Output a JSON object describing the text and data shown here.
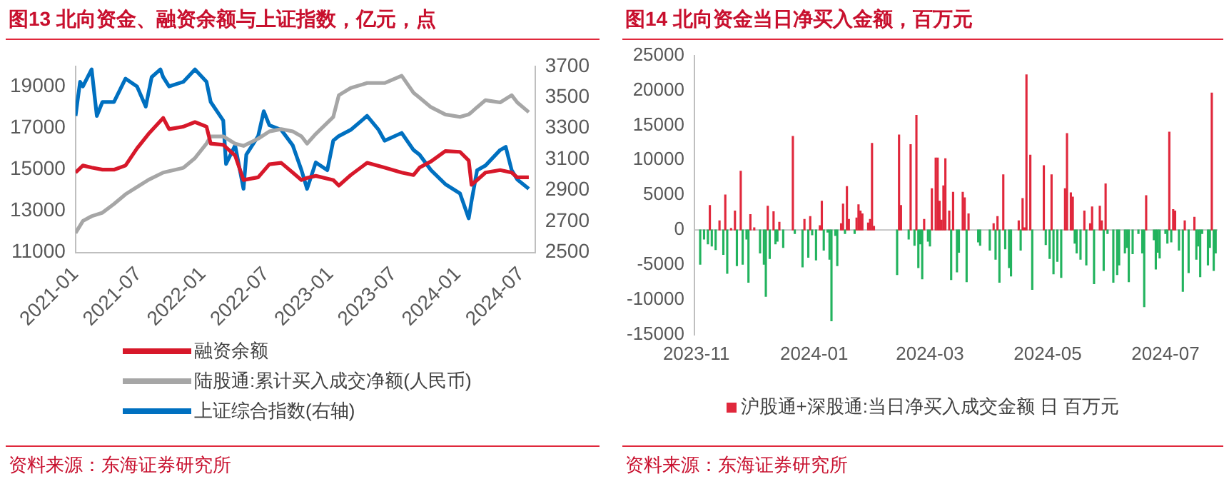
{
  "chart_data": [
    {
      "type": "line",
      "title": "图13  北向资金、融资余额与上证指数，亿元，点",
      "annotations": [
        "资料来源：东海证券研究所"
      ],
      "legend": "bottom",
      "xlim": [
        "2021-01-01",
        "2024-08-09"
      ],
      "xticks": [
        "2021-01",
        "2021-07",
        "2022-01",
        "2022-07",
        "2023-01",
        "2023-07",
        "2024-01",
        "2024-07"
      ],
      "ylim": [
        11000,
        20000
      ],
      "yticks": [
        11000,
        13000,
        15000,
        17000,
        19000
      ],
      "y2lim": [
        2500,
        3700
      ],
      "y2ticks": [
        2500,
        2700,
        2900,
        3100,
        3300,
        3500,
        3700
      ],
      "series": [
        {
          "name": "融资余额",
          "color": "#d7182a",
          "x": [
            "2021-01-01",
            "2021-01-22",
            "2021-02-16",
            "2021-03-19",
            "2021-04-21",
            "2021-05-24",
            "2021-06-26",
            "2021-07-29",
            "2021-09-09",
            "2021-09-26",
            "2021-11-06",
            "2021-12-09",
            "2022-01-11",
            "2022-01-23",
            "2022-02-28",
            "2022-04-03",
            "2022-04-27",
            "2022-06-08",
            "2022-07-10",
            "2022-08-13",
            "2022-09-15",
            "2022-10-10",
            "2022-10-26",
            "2022-11-20",
            "2023-01-09",
            "2023-01-25",
            "2023-02-28",
            "2023-04-16",
            "2023-06-05",
            "2023-07-24",
            "2023-08-27",
            "2023-09-13",
            "2023-10-16",
            "2023-11-26",
            "2024-01-07",
            "2024-02-01",
            "2024-02-09",
            "2024-02-25",
            "2024-03-20",
            "2024-05-01",
            "2024-06-03",
            "2024-06-19",
            "2024-07-22"
          ],
          "values": [
            14860,
            15200,
            15100,
            15000,
            15000,
            15200,
            16030,
            16730,
            17500,
            16960,
            17080,
            17300,
            17080,
            16260,
            16200,
            15680,
            14500,
            14630,
            15260,
            15330,
            14860,
            14500,
            14600,
            14700,
            14500,
            14230,
            14740,
            15330,
            15100,
            14860,
            14740,
            15100,
            15400,
            15900,
            15860,
            15440,
            14270,
            14500,
            14860,
            14980,
            14860,
            14630,
            14630
          ]
        },
        {
          "name": "陆股通:累计买入成交净额(人民币)",
          "color": "#a6a6a6",
          "x": [
            "2021-01-01",
            "2021-01-22",
            "2021-02-16",
            "2021-03-19",
            "2021-04-21",
            "2021-05-24",
            "2021-06-26",
            "2021-07-29",
            "2021-09-09",
            "2021-09-26",
            "2021-11-06",
            "2021-12-09",
            "2022-01-11",
            "2022-01-23",
            "2022-02-28",
            "2022-04-03",
            "2022-04-27",
            "2022-06-08",
            "2022-07-10",
            "2022-08-13",
            "2022-09-15",
            "2022-10-10",
            "2022-10-26",
            "2022-11-20",
            "2023-01-09",
            "2023-01-25",
            "2023-02-28",
            "2023-04-16",
            "2023-06-05",
            "2023-07-24",
            "2023-08-27",
            "2023-09-13",
            "2023-10-16",
            "2023-11-26",
            "2024-01-07",
            "2024-02-01",
            "2024-02-09",
            "2024-02-25",
            "2024-03-20",
            "2024-05-01",
            "2024-06-03",
            "2024-06-19",
            "2024-07-22"
          ],
          "values": [
            11940,
            12520,
            12750,
            12920,
            13340,
            13810,
            14160,
            14510,
            14860,
            14930,
            15090,
            15560,
            16260,
            16610,
            16610,
            16260,
            16150,
            16500,
            16850,
            16960,
            16850,
            16610,
            16260,
            16730,
            17550,
            18600,
            18950,
            19190,
            19190,
            19540,
            18720,
            18480,
            18020,
            17670,
            17550,
            17670,
            17780,
            18020,
            18360,
            18250,
            18600,
            18250,
            17780
          ]
        },
        {
          "name": "上证综合指数(右轴)",
          "color": "#0070c0",
          "axis": "y2",
          "x": [
            "2021-01-01",
            "2021-01-14",
            "2021-01-22",
            "2021-02-16",
            "2021-03-03",
            "2021-03-19",
            "2021-04-21",
            "2021-05-24",
            "2021-06-26",
            "2021-07-21",
            "2021-08-07",
            "2021-09-01",
            "2021-09-09",
            "2021-09-26",
            "2021-11-06",
            "2021-12-09",
            "2022-01-11",
            "2022-01-23",
            "2022-02-28",
            "2022-03-08",
            "2022-04-03",
            "2022-04-27",
            "2022-05-05",
            "2022-06-08",
            "2022-06-24",
            "2022-07-10",
            "2022-08-13",
            "2022-09-15",
            "2022-10-10",
            "2022-10-26",
            "2022-11-20",
            "2022-12-23",
            "2023-01-09",
            "2023-01-25",
            "2023-02-28",
            "2023-04-16",
            "2023-05-19",
            "2023-06-05",
            "2023-07-24",
            "2023-08-27",
            "2023-09-13",
            "2023-10-16",
            "2023-11-26",
            "2024-01-07",
            "2024-02-01",
            "2024-02-09",
            "2024-02-25",
            "2024-03-20",
            "2024-05-01",
            "2024-05-17",
            "2024-06-03",
            "2024-06-19",
            "2024-07-22"
          ],
          "values": [
            3380,
            3600,
            3570,
            3680,
            3380,
            3470,
            3470,
            3620,
            3570,
            3440,
            3630,
            3680,
            3630,
            3570,
            3600,
            3680,
            3600,
            3470,
            3350,
            3070,
            3190,
            2910,
            3130,
            3250,
            3410,
            3320,
            3290,
            3190,
            3030,
            2910,
            3080,
            3030,
            3220,
            3250,
            3290,
            3380,
            3290,
            3220,
            3270,
            3160,
            3130,
            3030,
            2940,
            2880,
            2720,
            2830,
            3030,
            3060,
            3160,
            3180,
            3030,
            2970,
            2910
          ]
        }
      ]
    },
    {
      "type": "bar",
      "title": "图14  北向资金当日净买入金额，百万元",
      "annotations": [
        "资料来源：东海证券研究所"
      ],
      "legend": "bottom",
      "xlim": [
        "2023-10-31",
        "2024-07-28"
      ],
      "xticks": [
        "2023-11",
        "2024-01",
        "2024-03",
        "2024-05",
        "2024-07"
      ],
      "ylim": [
        -15000,
        25000
      ],
      "yticks": [
        -15000,
        -10000,
        -5000,
        0,
        5000,
        10000,
        15000,
        20000,
        25000
      ],
      "series": [
        {
          "name": "沪股通+深股通:当日净买入成交金额 日 百万元",
          "color": "#e0283c",
          "x": [
            "2023-11-03",
            "2023-11-05",
            "2023-11-07",
            "2023-11-08",
            "2023-11-09",
            "2023-11-11",
            "2023-11-13",
            "2023-11-15",
            "2023-11-16",
            "2023-11-17",
            "2023-11-19",
            "2023-11-21",
            "2023-11-22",
            "2023-11-24",
            "2023-11-25",
            "2023-11-27",
            "2023-11-28",
            "2023-11-29",
            "2023-12-01",
            "2023-12-04",
            "2023-12-06",
            "2023-12-07",
            "2023-12-08",
            "2023-12-09",
            "2023-12-11",
            "2023-12-12",
            "2023-12-13",
            "2023-12-14",
            "2023-12-16",
            "2023-12-21",
            "2023-12-22",
            "2023-12-26",
            "2023-12-27",
            "2023-12-29",
            "2023-12-30",
            "2023-12-31",
            "2024-01-02",
            "2024-01-04",
            "2024-01-05",
            "2024-01-06",
            "2024-01-08",
            "2024-01-09",
            "2024-01-10",
            "2024-01-12",
            "2024-01-13",
            "2024-01-15",
            "2024-01-16",
            "2024-01-17",
            "2024-01-18",
            "2024-01-19",
            "2024-01-22",
            "2024-01-23",
            "2024-01-24",
            "2024-01-25",
            "2024-01-26",
            "2024-01-29",
            "2024-01-30",
            "2024-01-31",
            "2024-02-01",
            "2024-02-13",
            "2024-02-14",
            "2024-02-15",
            "2024-02-19",
            "2024-02-20",
            "2024-02-22",
            "2024-02-23",
            "2024-02-24",
            "2024-02-25",
            "2024-02-26",
            "2024-02-27",
            "2024-02-29",
            "2024-03-01",
            "2024-03-02",
            "2024-03-04",
            "2024-03-05",
            "2024-03-06",
            "2024-03-07",
            "2024-03-08",
            "2024-03-09",
            "2024-03-11",
            "2024-03-12",
            "2024-03-13",
            "2024-03-15",
            "2024-03-16",
            "2024-03-18",
            "2024-03-19",
            "2024-03-20",
            "2024-03-21",
            "2024-03-26",
            "2024-03-27",
            "2024-04-01",
            "2024-04-03",
            "2024-04-04",
            "2024-04-05",
            "2024-04-06",
            "2024-04-08",
            "2024-04-09",
            "2024-04-11",
            "2024-04-12",
            "2024-04-16",
            "2024-04-17",
            "2024-04-18",
            "2024-04-19",
            "2024-04-20",
            "2024-04-22",
            "2024-04-23",
            "2024-04-29",
            "2024-04-30",
            "2024-05-02",
            "2024-05-03",
            "2024-05-04",
            "2024-05-06",
            "2024-05-08",
            "2024-05-10",
            "2024-05-11",
            "2024-05-13",
            "2024-05-14",
            "2024-05-15",
            "2024-05-16",
            "2024-05-18",
            "2024-05-20",
            "2024-05-21",
            "2024-05-23",
            "2024-05-24",
            "2024-05-25",
            "2024-05-28",
            "2024-05-29",
            "2024-05-30",
            "2024-05-31",
            "2024-06-01",
            "2024-06-04",
            "2024-06-06",
            "2024-06-07",
            "2024-06-10",
            "2024-06-11",
            "2024-06-12",
            "2024-06-14",
            "2024-06-17",
            "2024-06-19",
            "2024-06-20",
            "2024-06-21",
            "2024-06-25",
            "2024-06-26",
            "2024-06-27",
            "2024-06-28",
            "2024-07-01",
            "2024-07-02",
            "2024-07-03",
            "2024-07-04",
            "2024-07-05",
            "2024-07-06",
            "2024-07-08",
            "2024-07-10",
            "2024-07-11",
            "2024-07-13",
            "2024-07-16",
            "2024-07-17",
            "2024-07-18",
            "2024-07-19",
            "2024-07-20",
            "2024-07-23",
            "2024-07-24",
            "2024-07-25",
            "2024-07-26",
            "2024-07-27"
          ],
          "values": [
            -4900,
            -1300,
            -2000,
            3500,
            -2300,
            -2800,
            1300,
            -3500,
            5000,
            -6200,
            200,
            2700,
            -5100,
            8400,
            -4900,
            -1300,
            -7500,
            2200,
            300,
            -3300,
            -4900,
            -9500,
            3400,
            -4100,
            2600,
            -2000,
            -1600,
            1100,
            -2500,
            13400,
            -500,
            -5300,
            1500,
            -3900,
            1900,
            -700,
            -4300,
            600,
            4100,
            -2900,
            -300,
            -4200,
            -13000,
            -800,
            -5100,
            900,
            3700,
            -500,
            6200,
            1500,
            -500,
            1700,
            3600,
            2700,
            2300,
            1000,
            1500,
            12400,
            500,
            -6400,
            13600,
            3500,
            -1300,
            12200,
            -2200,
            16400,
            -5400,
            -2000,
            -7000,
            1500,
            -1600,
            -2300,
            5900,
            10300,
            10300,
            4100,
            1400,
            6300,
            10200,
            2700,
            -7100,
            5400,
            -6000,
            -3200,
            5400,
            4600,
            -7400,
            2300,
            -1700,
            -2200,
            -2900,
            900,
            -4200,
            1900,
            -7500,
            7900,
            -2700,
            -5400,
            -6600,
            1300,
            -2900,
            4500,
            300,
            22200,
            10700,
            -8500,
            9200,
            -2100,
            -4100,
            7900,
            -6300,
            -4500,
            -6800,
            5900,
            13800,
            5300,
            4700,
            -1900,
            -3300,
            -4200,
            2700,
            -5000,
            900,
            3300,
            -7700,
            3400,
            1300,
            -5800,
            6600,
            -500,
            -7500,
            -6400,
            -5000,
            -3300,
            -2500,
            -7400,
            -3400,
            -500,
            -3300,
            -11000,
            4900,
            -1400,
            -5600,
            -3200,
            -4000,
            -500,
            -1900,
            14000,
            -1700,
            2900,
            2700,
            -2900,
            -8800,
            1300,
            -6100,
            1800,
            -4200,
            -2300,
            -6700,
            -500,
            -5000,
            -2500,
            19600,
            -5800,
            -3300
          ],
          "colors": [
            "#22b35e",
            "#22b35e",
            "#22b35e",
            "#e0283c",
            "#22b35e",
            "#22b35e",
            "#e0283c",
            "#22b35e",
            "#e0283c",
            "#22b35e",
            "#e0283c",
            "#e0283c",
            "#22b35e",
            "#e0283c",
            "#22b35e",
            "#22b35e",
            "#22b35e",
            "#e0283c",
            "#e0283c",
            "#22b35e",
            "#22b35e",
            "#22b35e",
            "#e0283c",
            "#22b35e",
            "#e0283c",
            "#22b35e",
            "#22b35e",
            "#e0283c",
            "#22b35e",
            "#e0283c",
            "#22b35e",
            "#22b35e",
            "#e0283c",
            "#22b35e",
            "#e0283c",
            "#22b35e",
            "#22b35e",
            "#e0283c",
            "#e0283c",
            "#22b35e",
            "#22b35e",
            "#22b35e",
            "#22b35e",
            "#22b35e",
            "#22b35e",
            "#e0283c",
            "#e0283c",
            "#22b35e",
            "#e0283c",
            "#e0283c",
            "#22b35e",
            "#e0283c",
            "#e0283c",
            "#e0283c",
            "#e0283c",
            "#e0283c",
            "#e0283c",
            "#e0283c",
            "#e0283c",
            "#22b35e",
            "#e0283c",
            "#e0283c",
            "#22b35e",
            "#e0283c",
            "#22b35e",
            "#e0283c",
            "#22b35e",
            "#22b35e",
            "#22b35e",
            "#e0283c",
            "#22b35e",
            "#22b35e",
            "#e0283c",
            "#e0283c",
            "#e0283c",
            "#e0283c",
            "#e0283c",
            "#e0283c",
            "#e0283c",
            "#e0283c",
            "#22b35e",
            "#e0283c",
            "#22b35e",
            "#22b35e",
            "#e0283c",
            "#e0283c",
            "#22b35e",
            "#e0283c",
            "#22b35e",
            "#22b35e",
            "#22b35e",
            "#e0283c",
            "#22b35e",
            "#e0283c",
            "#22b35e",
            "#e0283c",
            "#22b35e",
            "#22b35e",
            "#22b35e",
            "#e0283c",
            "#22b35e",
            "#e0283c",
            "#e0283c",
            "#e0283c",
            "#e0283c",
            "#22b35e",
            "#e0283c",
            "#22b35e",
            "#22b35e",
            "#e0283c",
            "#22b35e",
            "#22b35e",
            "#22b35e",
            "#e0283c",
            "#e0283c",
            "#e0283c",
            "#e0283c",
            "#22b35e",
            "#22b35e",
            "#22b35e",
            "#e0283c",
            "#22b35e",
            "#e0283c",
            "#e0283c",
            "#22b35e",
            "#e0283c",
            "#e0283c",
            "#22b35e",
            "#e0283c",
            "#22b35e",
            "#22b35e",
            "#22b35e",
            "#22b35e",
            "#22b35e",
            "#22b35e",
            "#22b35e",
            "#22b35e",
            "#22b35e",
            "#22b35e",
            "#22b35e",
            "#e0283c",
            "#22b35e",
            "#22b35e",
            "#22b35e",
            "#22b35e",
            "#22b35e",
            "#22b35e",
            "#e0283c",
            "#22b35e",
            "#e0283c",
            "#e0283c",
            "#22b35e",
            "#22b35e",
            "#e0283c",
            "#22b35e",
            "#e0283c",
            "#22b35e",
            "#22b35e",
            "#22b35e",
            "#22b35e",
            "#22b35e",
            "#22b35e",
            "#e0283c",
            "#22b35e",
            "#22b35e"
          ]
        }
      ]
    }
  ]
}
